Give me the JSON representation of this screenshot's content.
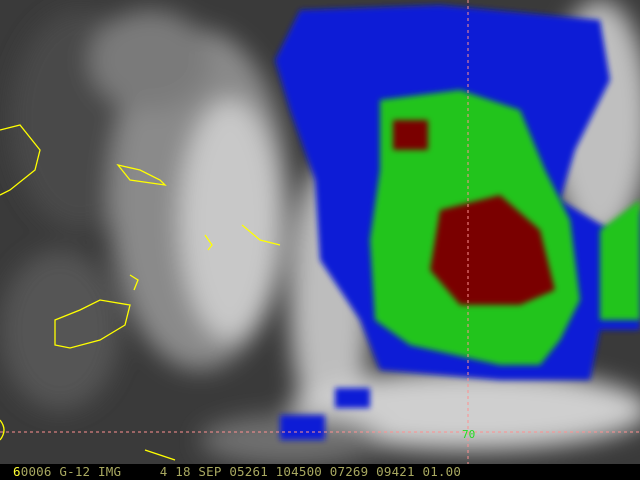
{
  "image": {
    "type": "enhanced infrared satellite image",
    "enhancement_colors": {
      "cold_cloud": "#0a1fd6",
      "colder": "#22c41a",
      "coldest": "#7a0000",
      "edge": "#a0f0f0",
      "coastline": "#ffff00",
      "grid": "#ff9090"
    }
  },
  "grid_label": "70",
  "status_bar": {
    "frame": "6",
    "text": "0006 G-12 IMG     4 18 SEP 05261 104500 07269 09421 01.00"
  }
}
